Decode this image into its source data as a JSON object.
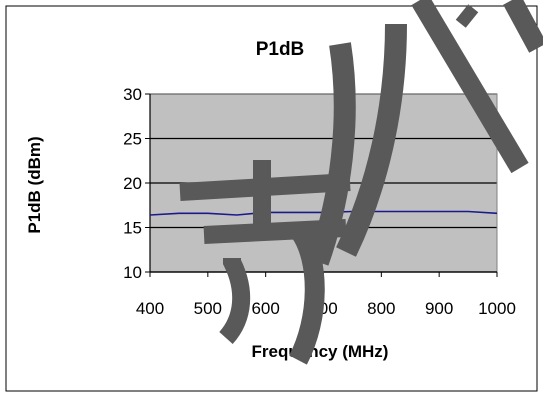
{
  "chart_data": {
    "type": "line",
    "title": "P1dB",
    "xlabel": "Frequency (MHz)",
    "ylabel": "P1dB (dBm)",
    "xlim": [
      400,
      1000
    ],
    "ylim": [
      10,
      30
    ],
    "xticks": [
      400,
      500,
      600,
      700,
      800,
      900,
      1000
    ],
    "yticks": [
      10,
      15,
      20,
      25,
      30
    ],
    "grid": "horizontal",
    "legend": "none",
    "plot_background": "#c0c0c0",
    "series": [
      {
        "color": "#1a1a8c",
        "x": [
          400,
          450,
          500,
          550,
          600,
          650,
          700,
          750,
          800,
          850,
          900,
          950,
          1000
        ],
        "y": [
          16.4,
          16.6,
          16.6,
          16.4,
          16.7,
          16.7,
          16.7,
          16.8,
          16.8,
          16.8,
          16.8,
          16.8,
          16.6
        ]
      }
    ]
  },
  "watermark": {
    "color": "#595959"
  }
}
